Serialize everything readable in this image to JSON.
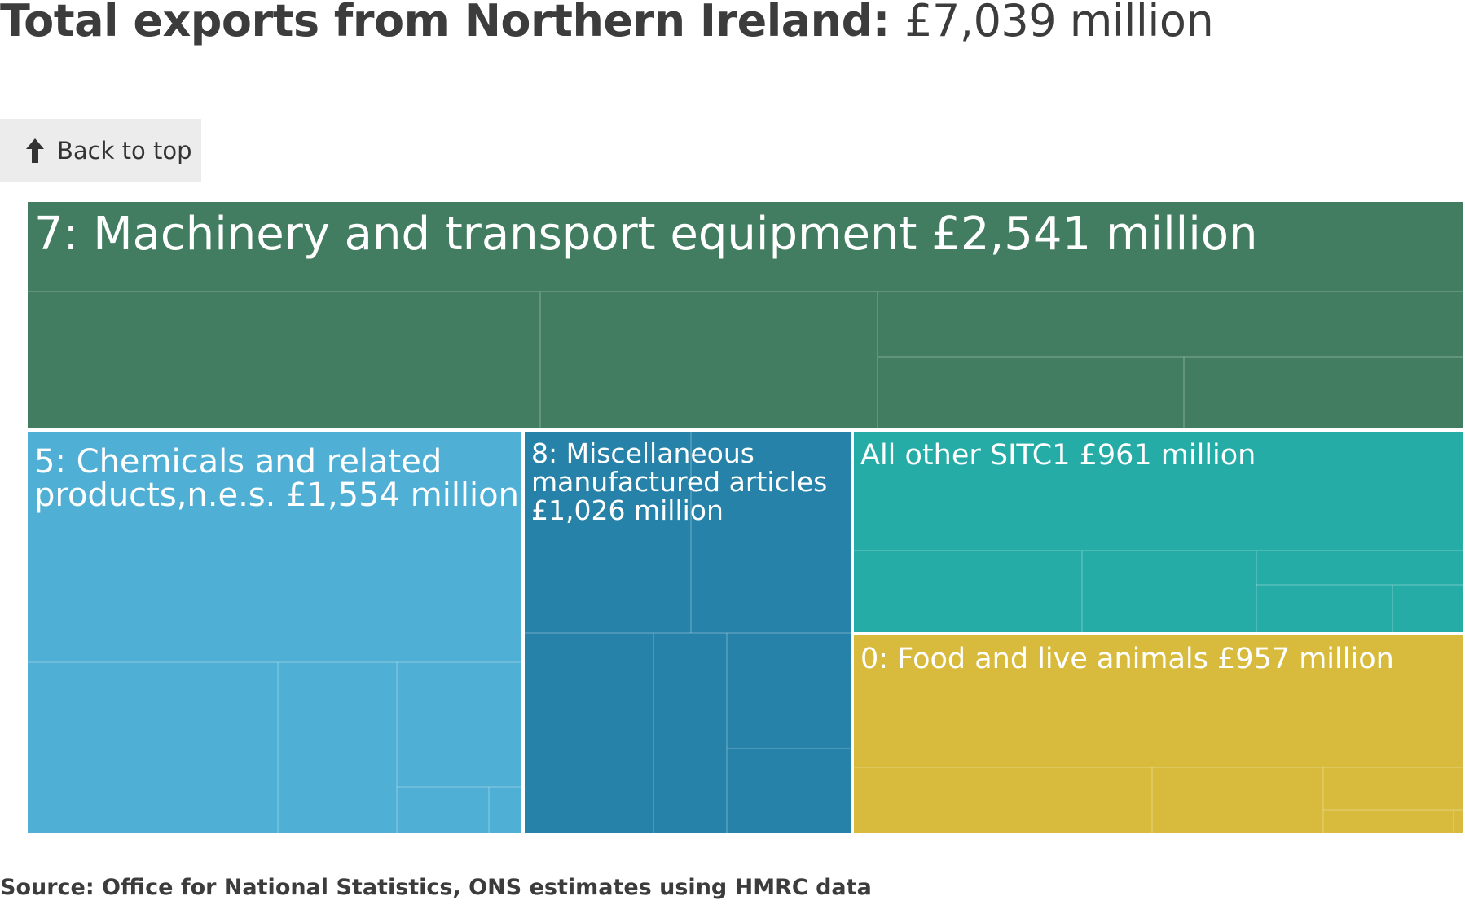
{
  "header": {
    "title_bold": "Total exports from Northern Ireland:",
    "title_value": "£7,039 million"
  },
  "back_button": {
    "label": "Back to top",
    "icon": "arrow-up-icon"
  },
  "chart_data": {
    "type": "treemap",
    "title": "Total exports from Northern Ireland: £7,039 million",
    "units": "£ million",
    "total": 7039,
    "groups": [
      {
        "name": "7: Machinery and transport equipment",
        "value": 2541,
        "label": "7: Machinery and transport equipment £2,541 million",
        "color": "#427d61"
      },
      {
        "name": "5: Chemicals and related products,n.e.s.",
        "value": 1554,
        "label_lines": [
          "5: Chemicals and related",
          "products,n.e.s. £1,554 million"
        ],
        "color": "#4fafd5"
      },
      {
        "name": "8: Miscellaneous manufactured articles",
        "value": 1026,
        "label_lines": [
          "8: Miscellaneous",
          "manufactured articles",
          "£1,026 million"
        ],
        "color": "#2682a8"
      },
      {
        "name": "All other SITC1",
        "value": 961,
        "label": "All other SITC1 £961 million",
        "color": "#26aca7"
      },
      {
        "name": "0: Food and live animals",
        "value": 957,
        "label": "0: Food and live animals £957 million",
        "color": "#d8bb3c"
      }
    ]
  },
  "source": "Source: Office for National Statistics, ONS estimates using HMRC data"
}
